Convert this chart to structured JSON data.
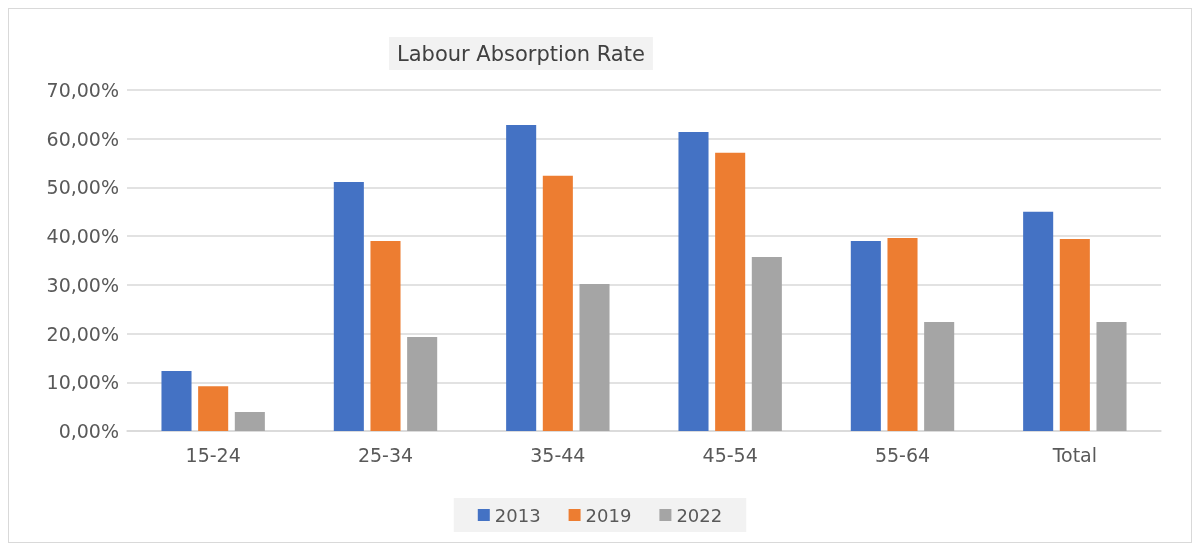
{
  "chart_data": {
    "type": "bar",
    "title": "Labour Absorption Rate",
    "categories": [
      "15-24",
      "25-34",
      "35-44",
      "45-54",
      "55-64",
      "Total"
    ],
    "series": [
      {
        "name": "2013",
        "color": "#4472c4",
        "values": [
          12.3,
          51.1,
          62.8,
          61.4,
          39.0,
          45.0
        ]
      },
      {
        "name": "2019",
        "color": "#ed7d31",
        "values": [
          9.2,
          39.0,
          52.4,
          57.1,
          39.6,
          39.4
        ]
      },
      {
        "name": "2022",
        "color": "#a5a5a5",
        "values": [
          3.9,
          19.3,
          30.2,
          35.7,
          22.4,
          22.4
        ]
      }
    ],
    "ylim": [
      0,
      70
    ],
    "yticks": [
      {
        "value": 0,
        "label": "0,00%"
      },
      {
        "value": 10,
        "label": "10,00%"
      },
      {
        "value": 20,
        "label": "20,00%"
      },
      {
        "value": 30,
        "label": "30,00%"
      },
      {
        "value": 40,
        "label": "40,00%"
      },
      {
        "value": 50,
        "label": "50,00%"
      },
      {
        "value": 60,
        "label": "60,00%"
      },
      {
        "value": 70,
        "label": "70,00%"
      }
    ],
    "grid": "y",
    "legend": "bottom"
  }
}
